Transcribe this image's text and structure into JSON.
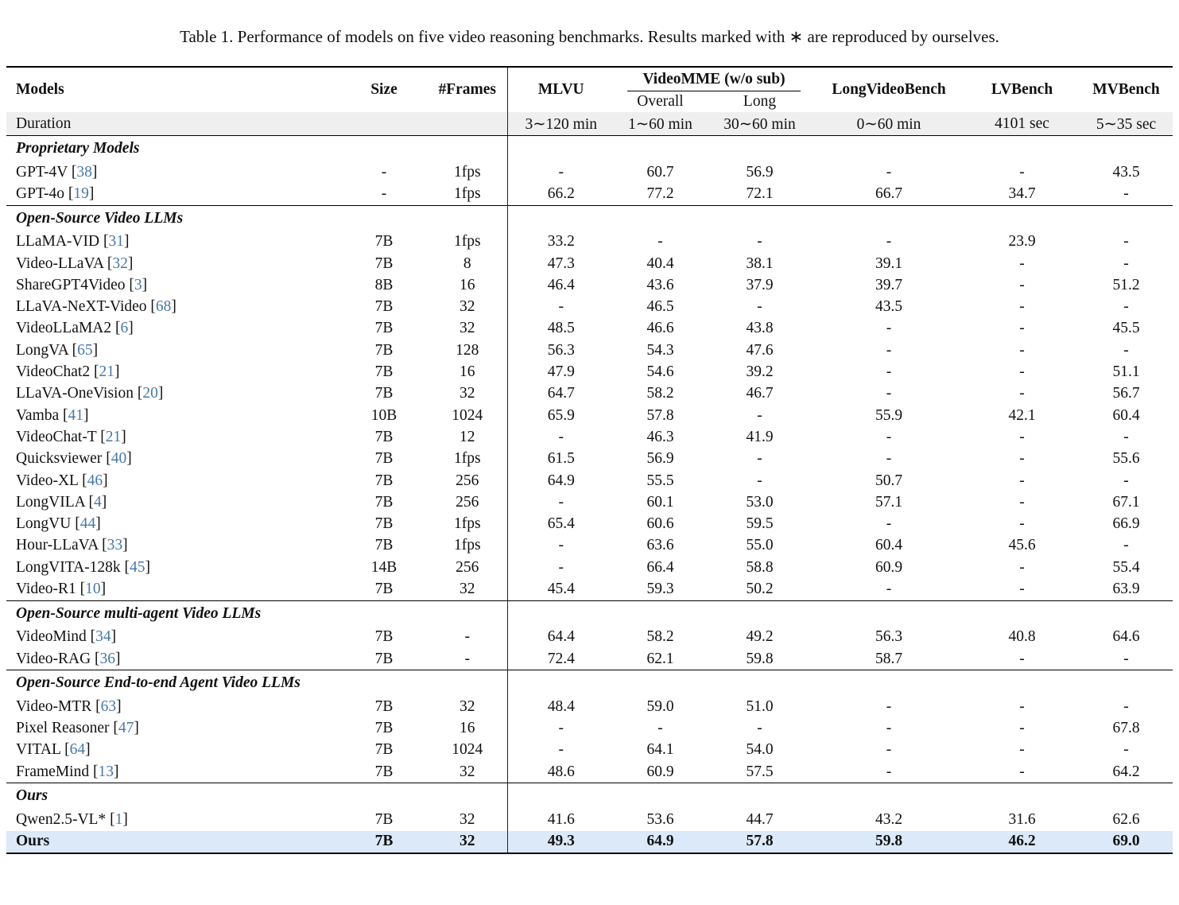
{
  "caption": "Table 1. Performance of models on five video reasoning benchmarks. Results marked with ∗ are reproduced by ourselves.",
  "colors": {
    "citation": "#4478ab",
    "highlight_row": "#dce9f8",
    "duration_bg": "#efefef"
  },
  "table": {
    "citation_open": "[",
    "citation_close": "]",
    "header": {
      "models": "Models",
      "size": "Size",
      "frames": "#Frames",
      "mlvu": "MLVU",
      "videomme_group": "VideoMME (w/o sub)",
      "overall": "Overall",
      "long": "Long",
      "longvideobench": "LongVideoBench",
      "lvbench": "LVBench",
      "mvbench": "MVBench"
    },
    "duration_row": {
      "label": "Duration",
      "values": [
        "3∼120 min",
        "1∼60 min",
        "30∼60 min",
        "0∼60 min",
        "4101 sec",
        "5∼35 sec"
      ]
    },
    "sections": [
      {
        "header": "Proprietary Models",
        "rows": [
          {
            "model": "GPT-4V",
            "cite": "38",
            "size": "-",
            "frames": "1fps",
            "values": [
              "-",
              "60.7",
              "56.9",
              "-",
              "-",
              "43.5"
            ]
          },
          {
            "model": "GPT-4o",
            "cite": "19",
            "size": "-",
            "frames": "1fps",
            "values": [
              "66.2",
              "77.2",
              "72.1",
              "66.7",
              "34.7",
              "-"
            ]
          }
        ]
      },
      {
        "header": "Open-Source Video LLMs",
        "rows": [
          {
            "model": "LLaMA-VID",
            "cite": "31",
            "size": "7B",
            "frames": "1fps",
            "values": [
              "33.2",
              "-",
              "-",
              "-",
              "23.9",
              "-"
            ]
          },
          {
            "model": "Video-LLaVA",
            "cite": "32",
            "size": "7B",
            "frames": "8",
            "values": [
              "47.3",
              "40.4",
              "38.1",
              "39.1",
              "-",
              "-"
            ]
          },
          {
            "model": "ShareGPT4Video",
            "cite": "3",
            "size": "8B",
            "frames": "16",
            "values": [
              "46.4",
              "43.6",
              "37.9",
              "39.7",
              "-",
              "51.2"
            ]
          },
          {
            "model": "LLaVA-NeXT-Video",
            "cite": "68",
            "size": "7B",
            "frames": "32",
            "values": [
              "-",
              "46.5",
              "-",
              "43.5",
              "-",
              "-"
            ]
          },
          {
            "model": "VideoLLaMA2",
            "cite": "6",
            "size": "7B",
            "frames": "32",
            "values": [
              "48.5",
              "46.6",
              "43.8",
              "-",
              "-",
              "45.5"
            ]
          },
          {
            "model": "LongVA",
            "cite": "65",
            "size": "7B",
            "frames": "128",
            "values": [
              "56.3",
              "54.3",
              "47.6",
              "-",
              "-",
              "-"
            ]
          },
          {
            "model": "VideoChat2",
            "cite": "21",
            "size": "7B",
            "frames": "16",
            "values": [
              "47.9",
              "54.6",
              "39.2",
              "-",
              "-",
              "51.1"
            ]
          },
          {
            "model": "LLaVA-OneVision",
            "cite": "20",
            "size": "7B",
            "frames": "32",
            "values": [
              "64.7",
              "58.2",
              "46.7",
              "-",
              "-",
              "56.7"
            ]
          },
          {
            "model": "Vamba",
            "cite": "41",
            "size": "10B",
            "frames": "1024",
            "values": [
              "65.9",
              "57.8",
              "-",
              "55.9",
              "42.1",
              "60.4"
            ]
          },
          {
            "model": "VideoChat-T",
            "cite": "21",
            "size": "7B",
            "frames": "12",
            "values": [
              "-",
              "46.3",
              "41.9",
              "-",
              "-",
              "-"
            ]
          },
          {
            "model": "Quicksviewer",
            "cite": "40",
            "size": "7B",
            "frames": "1fps",
            "values": [
              "61.5",
              "56.9",
              "-",
              "-",
              "-",
              "55.6"
            ]
          },
          {
            "model": "Video-XL",
            "cite": "46",
            "size": "7B",
            "frames": "256",
            "values": [
              "64.9",
              "55.5",
              "-",
              "50.7",
              "-",
              "-"
            ]
          },
          {
            "model": "LongVILA",
            "cite": "4",
            "size": "7B",
            "frames": "256",
            "values": [
              "-",
              "60.1",
              "53.0",
              "57.1",
              "-",
              "67.1"
            ]
          },
          {
            "model": "LongVU",
            "cite": "44",
            "size": "7B",
            "frames": "1fps",
            "values": [
              "65.4",
              "60.6",
              "59.5",
              "-",
              "-",
              "66.9"
            ]
          },
          {
            "model": "Hour-LLaVA",
            "cite": "33",
            "size": "7B",
            "frames": "1fps",
            "values": [
              "-",
              "63.6",
              "55.0",
              "60.4",
              "45.6",
              "-"
            ]
          },
          {
            "model": "LongVITA-128k",
            "cite": "45",
            "size": "14B",
            "frames": "256",
            "values": [
              "-",
              "66.4",
              "58.8",
              "60.9",
              "-",
              "55.4"
            ]
          },
          {
            "model": "Video-R1",
            "cite": "10",
            "size": "7B",
            "frames": "32",
            "values": [
              "45.4",
              "59.3",
              "50.2",
              "-",
              "-",
              "63.9"
            ]
          }
        ]
      },
      {
        "header": "Open-Source multi-agent Video LLMs",
        "rows": [
          {
            "model": "VideoMind",
            "cite": "34",
            "size": "7B",
            "frames": "-",
            "values": [
              "64.4",
              "58.2",
              "49.2",
              "56.3",
              "40.8",
              "64.6"
            ]
          },
          {
            "model": "Video-RAG",
            "cite": "36",
            "size": "7B",
            "frames": "-",
            "values": [
              "72.4",
              "62.1",
              "59.8",
              "58.7",
              "-",
              "-"
            ]
          }
        ]
      },
      {
        "header": "Open-Source End-to-end Agent Video LLMs",
        "rows": [
          {
            "model": "Video-MTR",
            "cite": "63",
            "size": "7B",
            "frames": "32",
            "values": [
              "48.4",
              "59.0",
              "51.0",
              "-",
              "-",
              "-"
            ]
          },
          {
            "model": "Pixel Reasoner",
            "cite": "47",
            "size": "7B",
            "frames": "16",
            "values": [
              "-",
              "-",
              "-",
              "-",
              "-",
              "67.8"
            ]
          },
          {
            "model": "VITAL",
            "cite": "64",
            "size": "7B",
            "frames": "1024",
            "values": [
              "-",
              "64.1",
              "54.0",
              "-",
              "-",
              "-"
            ]
          },
          {
            "model": "FrameMind",
            "cite": "13",
            "size": "7B",
            "frames": "32",
            "values": [
              "48.6",
              "60.9",
              "57.5",
              "-",
              "-",
              "64.2"
            ]
          }
        ]
      },
      {
        "header": "Ours",
        "rows": [
          {
            "model": "Qwen2.5-VL*",
            "cite": "1",
            "size": "7B",
            "frames": "32",
            "values": [
              "41.6",
              "53.6",
              "44.7",
              "43.2",
              "31.6",
              "62.6"
            ]
          },
          {
            "model": "Ours",
            "cite": null,
            "size": "7B",
            "frames": "32",
            "values": [
              "49.3",
              "64.9",
              "57.8",
              "59.8",
              "46.2",
              "69.0"
            ],
            "bold": true,
            "highlight": true
          }
        ]
      }
    ]
  }
}
